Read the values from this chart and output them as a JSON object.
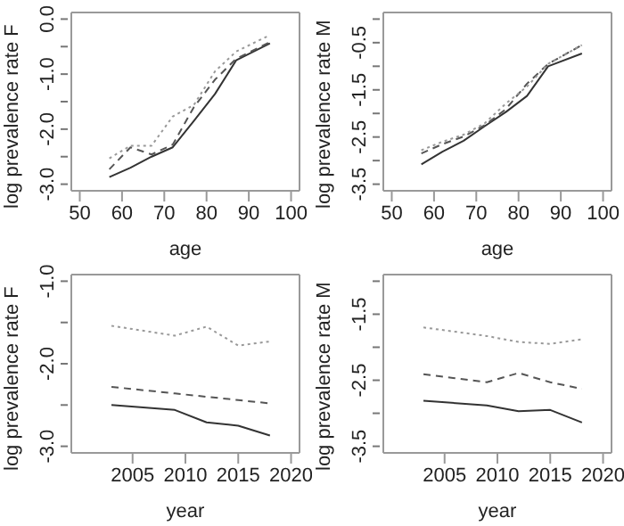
{
  "chart_data": [
    {
      "type": "line",
      "xlabel": "age",
      "ylabel": "log prevalence rate F",
      "x": [
        57,
        62,
        67,
        72,
        77,
        82,
        87,
        95
      ],
      "xlim": [
        48,
        102
      ],
      "xticks": [
        50,
        60,
        70,
        80,
        90,
        100
      ],
      "ylim": [
        -3.12,
        0.12
      ],
      "yticks": [
        {
          "value": -3,
          "label": "-3.0"
        },
        {
          "value": -2.5,
          "label": null
        },
        {
          "value": -2,
          "label": "-2.0"
        },
        {
          "value": -1.5,
          "label": null
        },
        {
          "value": -1,
          "label": "-1.0"
        },
        {
          "value": -0.5,
          "label": null
        },
        {
          "value": 0,
          "label": "0.0"
        }
      ],
      "grid": false,
      "legend": false,
      "marker": "none",
      "series": [
        {
          "color": "#333333",
          "line_style": "solid",
          "values": [
            -2.87,
            -2.7,
            -2.5,
            -2.33,
            -1.85,
            -1.36,
            -0.75,
            -0.44
          ]
        },
        {
          "color": "#555555",
          "line_style": "dashed",
          "values": [
            -2.73,
            -2.33,
            -2.46,
            -2.28,
            -1.6,
            -1.1,
            -0.72,
            -0.42
          ]
        },
        {
          "color": "#999999",
          "line_style": "dotted",
          "values": [
            -2.53,
            -2.3,
            -2.3,
            -1.77,
            -1.56,
            -0.95,
            -0.59,
            -0.29
          ]
        }
      ]
    },
    {
      "type": "line",
      "xlabel": "age",
      "ylabel": "log prevalence rate M",
      "x": [
        57,
        62,
        67,
        72,
        77,
        82,
        87,
        95
      ],
      "xlim": [
        48,
        102
      ],
      "xticks": [
        50,
        60,
        70,
        80,
        90,
        100
      ],
      "ylim": [
        -3.64,
        0.14
      ],
      "yticks": [
        -3.5,
        {
          "value": -3,
          "label": null
        },
        -2.5,
        {
          "value": -2,
          "label": null
        },
        -1.5,
        {
          "value": -1,
          "label": null
        },
        -0.5,
        {
          "value": 0,
          "label": null
        }
      ],
      "grid": false,
      "legend": false,
      "marker": "none",
      "series": [
        {
          "color": "#333333",
          "line_style": "solid",
          "values": [
            -3.08,
            -2.81,
            -2.58,
            -2.27,
            -1.97,
            -1.63,
            -1.0,
            -0.73
          ]
        },
        {
          "color": "#555555",
          "line_style": "dashed",
          "values": [
            -2.85,
            -2.65,
            -2.49,
            -2.25,
            -1.91,
            -1.37,
            -0.95,
            -0.55
          ]
        },
        {
          "color": "#999999",
          "line_style": "dotted",
          "values": [
            -2.78,
            -2.6,
            -2.45,
            -2.21,
            -1.79,
            -1.43,
            -0.95,
            -0.55
          ]
        }
      ]
    },
    {
      "type": "line",
      "xlabel": "year",
      "ylabel": "log prevalence rate F",
      "x": [
        2003,
        2009,
        2012,
        2015,
        2018
      ],
      "xlim": [
        1999.2,
        2020.8
      ],
      "xticks": [
        2005,
        2010,
        2015,
        2020
      ],
      "ylim": [
        -3.08,
        -0.92
      ],
      "yticks": [
        {
          "value": -3,
          "label": "-3.0"
        },
        {
          "value": -2.5,
          "label": null
        },
        {
          "value": -2,
          "label": "-2.0"
        },
        {
          "value": -1.5,
          "label": null
        },
        {
          "value": -1,
          "label": "-1.0"
        }
      ],
      "grid": false,
      "legend": false,
      "marker": "none",
      "series": [
        {
          "color": "#333333",
          "line_style": "solid",
          "values": [
            -2.5,
            -2.56,
            -2.71,
            -2.75,
            -2.87
          ]
        },
        {
          "color": "#555555",
          "line_style": "dashed",
          "values": [
            -2.28,
            -2.36,
            -2.4,
            -2.44,
            -2.48
          ]
        },
        {
          "color": "#999999",
          "line_style": "dotted",
          "values": [
            -1.54,
            -1.66,
            -1.55,
            -1.78,
            -1.73
          ]
        }
      ]
    },
    {
      "type": "line",
      "xlabel": "year",
      "ylabel": "log prevalence rate M",
      "x": [
        2003,
        2009,
        2012,
        2015,
        2018
      ],
      "xlim": [
        1999.2,
        2020.8
      ],
      "xticks": [
        2005,
        2010,
        2015,
        2020
      ],
      "ylim": [
        -3.6,
        -0.9
      ],
      "yticks": [
        -3.5,
        {
          "value": -3,
          "label": null
        },
        -2.5,
        {
          "value": -2,
          "label": null
        },
        -1.5,
        {
          "value": -1,
          "label": null
        }
      ],
      "grid": false,
      "legend": false,
      "marker": "none",
      "series": [
        {
          "color": "#333333",
          "line_style": "solid",
          "values": [
            -2.81,
            -2.88,
            -2.97,
            -2.95,
            -3.14
          ]
        },
        {
          "color": "#555555",
          "line_style": "dashed",
          "values": [
            -2.41,
            -2.53,
            -2.39,
            -2.53,
            -2.63
          ]
        },
        {
          "color": "#999999",
          "line_style": "dotted",
          "values": [
            -1.7,
            -1.83,
            -1.92,
            -1.95,
            -1.88
          ]
        }
      ]
    }
  ]
}
